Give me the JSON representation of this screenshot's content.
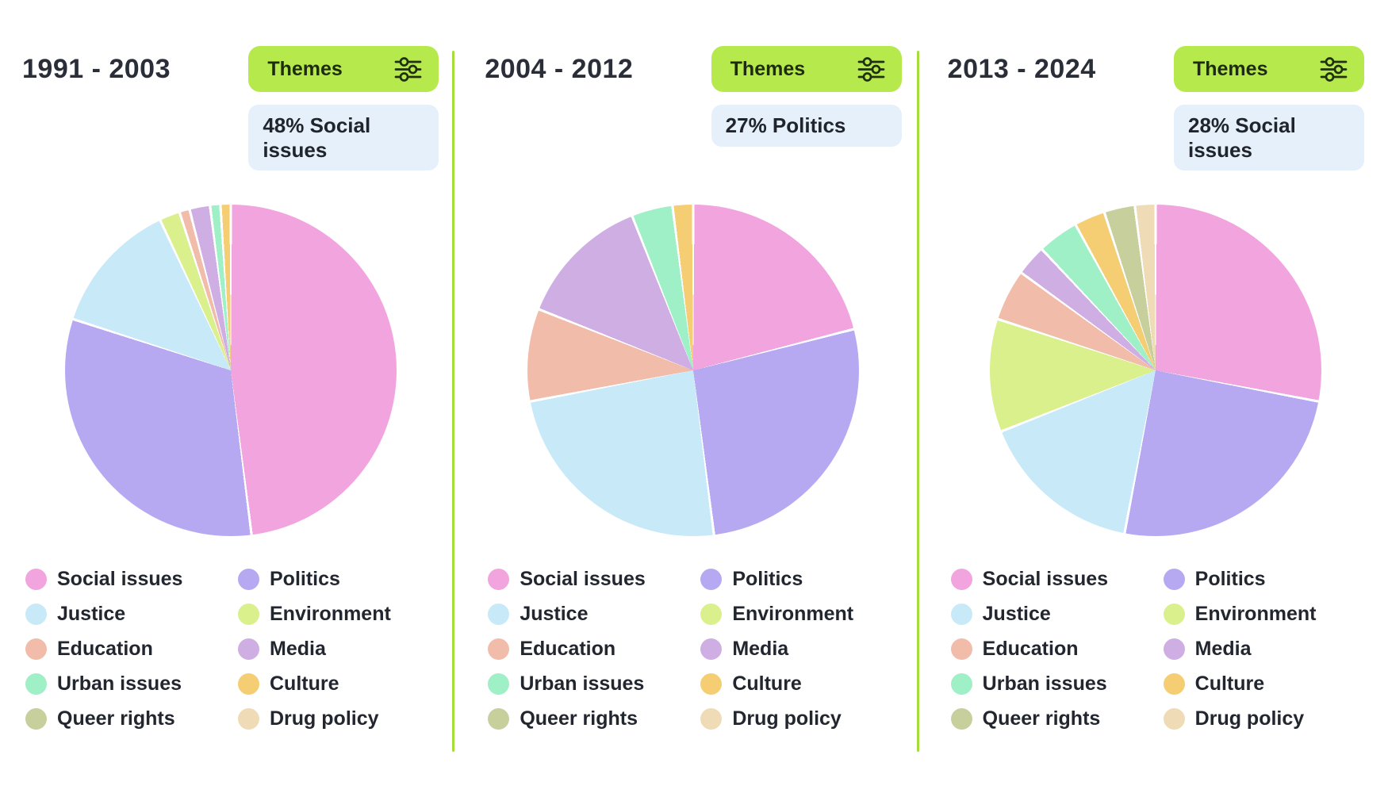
{
  "colors": {
    "accent_green": "#B5E94C",
    "divider_green": "#A6DD3B",
    "stat_badge_bg": "#E6F0FA",
    "text_dark": "#23262f"
  },
  "themes": [
    {
      "label": "Social issues",
      "color": "#F2A4DF"
    },
    {
      "label": "Politics",
      "color": "#B6A9F2"
    },
    {
      "label": "Justice",
      "color": "#C8E9F8"
    },
    {
      "label": "Environment",
      "color": "#D9F08C"
    },
    {
      "label": "Education",
      "color": "#F2BCAB"
    },
    {
      "label": "Media",
      "color": "#CFAEE3"
    },
    {
      "label": "Urban issues",
      "color": "#9FEFC7"
    },
    {
      "label": "Culture",
      "color": "#F5CD73"
    },
    {
      "label": "Queer rights",
      "color": "#C7D09C"
    },
    {
      "label": "Drug policy",
      "color": "#EFDCB6"
    }
  ],
  "panels": [
    {
      "title": "1991 - 2003",
      "button_label": "Themes",
      "stat": "48% Social\nissues"
    },
    {
      "title": "2004 - 2012",
      "button_label": "Themes",
      "stat": "27% Politics"
    },
    {
      "title": "2013 - 2024",
      "button_label": "Themes",
      "stat": "28% Social\nissues"
    }
  ],
  "chart_data": [
    {
      "type": "pie",
      "title": "1991 - 2003",
      "highlight": "48% Social issues",
      "legend_position": "bottom",
      "start_angle": "top, clockwise",
      "categories": [
        "Social issues",
        "Politics",
        "Justice",
        "Environment",
        "Education",
        "Media",
        "Urban issues",
        "Culture",
        "Queer rights",
        "Drug policy"
      ],
      "values": [
        48,
        32,
        13,
        2,
        1,
        2,
        1,
        1,
        0,
        0
      ]
    },
    {
      "type": "pie",
      "title": "2004 - 2012",
      "highlight": "27% Politics",
      "legend_position": "bottom",
      "start_angle": "top, clockwise",
      "categories": [
        "Social issues",
        "Politics",
        "Justice",
        "Environment",
        "Education",
        "Media",
        "Urban issues",
        "Culture",
        "Queer rights",
        "Drug policy"
      ],
      "values": [
        21,
        27,
        24,
        0,
        9,
        13,
        4,
        2,
        0,
        0
      ]
    },
    {
      "type": "pie",
      "title": "2013 - 2024",
      "highlight": "28% Social issues",
      "legend_position": "bottom",
      "start_angle": "top, clockwise",
      "categories": [
        "Social issues",
        "Politics",
        "Justice",
        "Environment",
        "Education",
        "Media",
        "Urban issues",
        "Culture",
        "Queer rights",
        "Drug policy"
      ],
      "values": [
        28,
        25,
        16,
        11,
        5,
        3,
        4,
        3,
        3,
        2
      ]
    }
  ]
}
